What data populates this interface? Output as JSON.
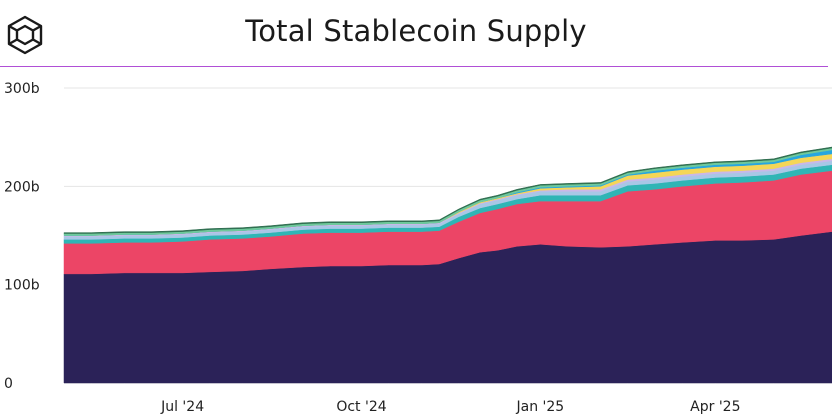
{
  "header": {
    "title": "Total Stablecoin Supply",
    "logo_icon": "cube-logo-icon"
  },
  "colors": {
    "rule": "#b04fd6",
    "grid": "#e4e4e4"
  },
  "chart_data": {
    "type": "area",
    "stacked": true,
    "title": "Total Stablecoin Supply",
    "xlabel": "",
    "ylabel": "",
    "ylim": [
      0,
      300
    ],
    "y_ticks": [
      0,
      100,
      200,
      300
    ],
    "y_tick_labels": [
      "0",
      "100b",
      "200b",
      "300b"
    ],
    "x_ticks": [
      {
        "date": "2024-07-01",
        "label": "Jul '24"
      },
      {
        "date": "2024-10-01",
        "label": "Oct '24"
      },
      {
        "date": "2025-01-01",
        "label": "Jan '25"
      },
      {
        "date": "2025-04-01",
        "label": "Apr '25"
      }
    ],
    "xlim": [
      "2024-05-01",
      "2025-05-31"
    ],
    "grid": true,
    "legend": "none",
    "x": [
      "2024-05-01",
      "2024-05-15",
      "2024-06-01",
      "2024-06-15",
      "2024-07-01",
      "2024-07-15",
      "2024-08-01",
      "2024-08-15",
      "2024-09-01",
      "2024-09-15",
      "2024-10-01",
      "2024-10-15",
      "2024-11-01",
      "2024-11-10",
      "2024-11-20",
      "2024-12-01",
      "2024-12-10",
      "2024-12-20",
      "2025-01-01",
      "2025-01-15",
      "2025-02-01",
      "2025-02-15",
      "2025-03-01",
      "2025-03-15",
      "2025-04-01",
      "2025-04-15",
      "2025-05-01",
      "2025-05-15",
      "2025-05-31"
    ],
    "series": [
      {
        "color": "#2b2258",
        "values": [
          111,
          111,
          112,
          112,
          112,
          113,
          114,
          116,
          118,
          119,
          119,
          120,
          120,
          121,
          127,
          133,
          135,
          139,
          141,
          139,
          138,
          139,
          141,
          143,
          145,
          145,
          146,
          150,
          154
        ]
      },
      {
        "color": "#ec4566",
        "values": [
          31,
          31,
          31,
          31,
          32,
          33,
          33,
          33,
          34,
          34,
          34,
          34,
          34,
          34,
          37,
          40,
          42,
          43,
          44,
          46,
          47,
          56,
          56,
          57,
          58,
          59,
          60,
          62,
          62
        ]
      },
      {
        "color": "#2fb5b5",
        "values": [
          4,
          4,
          4,
          4,
          4,
          4,
          4,
          4,
          4,
          4,
          4,
          4,
          4,
          4,
          5,
          5,
          5,
          5,
          6,
          6,
          6,
          6,
          6,
          6,
          6,
          6,
          6,
          6,
          6
        ]
      },
      {
        "color": "#a8c7e6",
        "values": [
          3,
          3,
          3,
          3,
          3,
          3,
          3,
          3,
          3,
          3,
          3,
          3,
          3,
          3,
          3,
          4,
          4,
          4,
          4,
          4,
          4,
          4,
          4,
          4,
          4,
          4,
          4,
          4,
          4
        ]
      },
      {
        "color": "#c9b8e8",
        "values": [
          1,
          1,
          1,
          1,
          1,
          1,
          1,
          1,
          1,
          1,
          1,
          1,
          1,
          1,
          1,
          1,
          1,
          1,
          1,
          2,
          2,
          2,
          2,
          2,
          2,
          2,
          2,
          2,
          2
        ]
      },
      {
        "color": "#f5d657",
        "values": [
          0,
          0,
          0,
          0,
          0,
          0,
          0,
          0,
          0,
          0,
          0,
          0,
          0,
          0,
          1,
          1,
          1,
          1,
          2,
          2,
          3,
          4,
          5,
          5,
          5,
          5,
          5,
          5,
          5
        ]
      },
      {
        "color": "#27a6e0",
        "values": [
          0,
          0,
          0,
          0,
          0,
          0,
          0,
          0,
          0,
          0,
          0,
          0,
          0,
          0,
          0,
          0,
          0,
          1,
          1,
          1,
          1,
          1,
          2,
          2,
          2,
          2,
          2,
          3,
          4
        ]
      },
      {
        "color": "#6fc99b",
        "values": [
          2,
          2,
          2,
          2,
          2,
          2,
          2,
          2,
          2,
          2,
          2,
          2,
          2,
          2,
          2,
          2,
          2,
          2,
          2,
          2,
          2,
          2,
          2,
          2,
          2,
          2,
          2,
          2,
          2
        ]
      },
      {
        "color": "#2f6e50",
        "values": [
          1,
          1,
          1,
          1,
          1,
          1,
          1,
          1,
          1,
          1,
          1,
          1,
          1,
          1,
          1,
          1,
          1,
          1,
          1,
          1,
          1,
          1,
          1,
          1,
          1,
          1,
          1,
          1,
          1
        ]
      }
    ]
  }
}
